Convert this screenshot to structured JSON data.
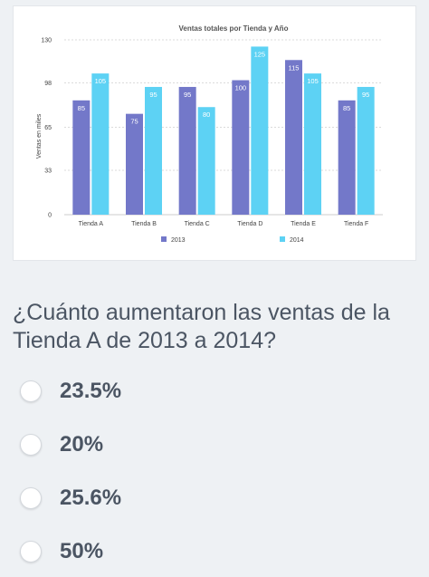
{
  "question": {
    "text": "¿Cuánto aumentaron las ventas de la Tienda A de 2013 a 2014?"
  },
  "options": [
    {
      "label": "23.5%"
    },
    {
      "label": "20%"
    },
    {
      "label": "25.6%"
    },
    {
      "label": "50%"
    }
  ],
  "colors": {
    "series_2013": "#7378c9",
    "series_2014": "#5dd2f4",
    "text": "#4b5563",
    "background": "#eef1f4"
  },
  "chart_data": {
    "type": "bar",
    "title": "Ventas totales por Tienda y Año",
    "ylabel": "Ventas en miles",
    "xlabel": "",
    "categories": [
      "Tienda A",
      "Tienda B",
      "Tienda C",
      "Tienda D",
      "Tienda E",
      "Tienda F"
    ],
    "series": [
      {
        "name": "2013",
        "values": [
          85,
          75,
          95,
          100,
          115,
          85
        ]
      },
      {
        "name": "2014",
        "values": [
          105,
          95,
          80,
          125,
          105,
          95
        ]
      }
    ],
    "yticks": [
      "0",
      "33",
      "65",
      "98",
      "130"
    ],
    "ylim": [
      0,
      130
    ],
    "grid": true,
    "legend": "bottom"
  }
}
